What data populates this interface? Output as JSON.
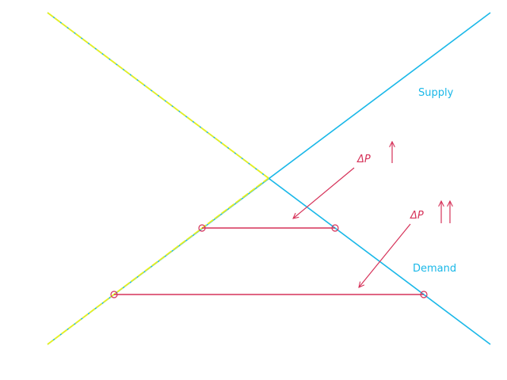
{
  "diagram": {
    "labels": {
      "supply": "Supply",
      "demand": "Demand",
      "delta_p_1": "ΔP",
      "delta_p_2": "ΔP"
    },
    "colors": {
      "supply": "#1ab8e8",
      "demand": "#1ab8e8",
      "highlight": "#e8f020",
      "gap": "#d6335a",
      "label_curve": "#1ab8e8"
    }
  }
}
